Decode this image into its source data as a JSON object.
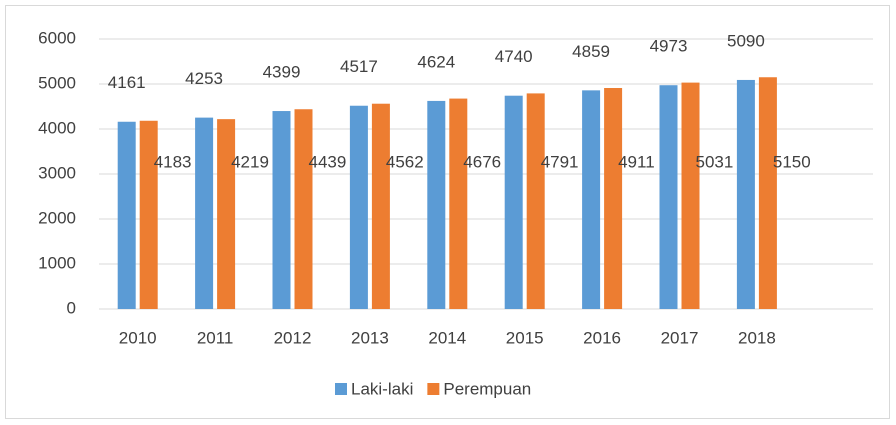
{
  "chart_data": {
    "type": "bar",
    "categories": [
      "2010",
      "2011",
      "2012",
      "2013",
      "2014",
      "2015",
      "2016",
      "2017",
      "2018",
      null
    ],
    "series": [
      {
        "name": "Laki-laki",
        "color": "#5b9bd5",
        "values": [
          4161,
          4253,
          4399,
          4517,
          4624,
          4740,
          4859,
          4973,
          5090,
          null
        ]
      },
      {
        "name": "Perempuan",
        "color": "#ed7d31",
        "values": [
          4183,
          4219,
          4439,
          4562,
          4676,
          4791,
          4911,
          5031,
          5150,
          null
        ]
      }
    ],
    "ylim": [
      0,
      6000
    ],
    "yticks": [
      0,
      1000,
      2000,
      3000,
      4000,
      5000,
      6000
    ],
    "grid": true,
    "legend": "bottom"
  }
}
